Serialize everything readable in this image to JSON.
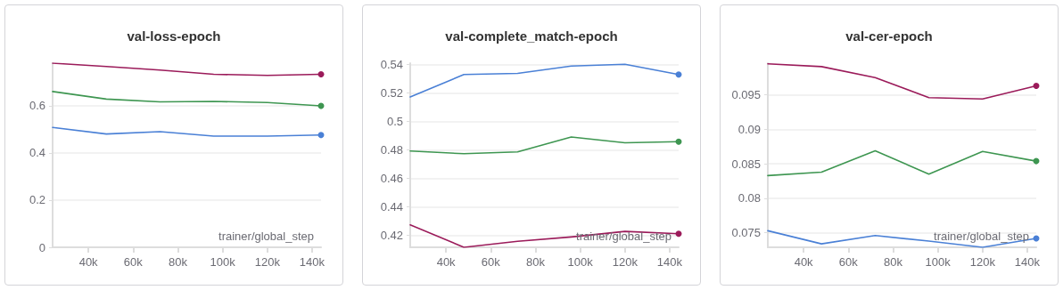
{
  "chart_data": [
    {
      "type": "line",
      "title": "val-loss-epoch",
      "xlabel": "trainer/global_step",
      "x": [
        24000,
        48000,
        72000,
        96000,
        120000,
        144000
      ],
      "xlim": [
        24000,
        144000
      ],
      "xticks": [
        {
          "value": 40000,
          "label": "40k"
        },
        {
          "value": 60000,
          "label": "60k"
        },
        {
          "value": 80000,
          "label": "80k"
        },
        {
          "value": 100000,
          "label": "100k"
        },
        {
          "value": 120000,
          "label": "120k"
        },
        {
          "value": 140000,
          "label": "140k"
        }
      ],
      "ylim": [
        0,
        0.78
      ],
      "yticks": [
        0,
        0.2,
        0.4,
        0.6
      ],
      "grid": "y",
      "marker": "none",
      "line_style": "solid",
      "series": [
        {
          "color": "#9b1b5a",
          "values": [
            0.78,
            0.766,
            0.751,
            0.733,
            0.728,
            0.733
          ]
        },
        {
          "color": "#3e9651",
          "values": [
            0.66,
            0.628,
            0.616,
            0.618,
            0.613,
            0.599
          ]
        },
        {
          "color": "#4a80d6",
          "values": [
            0.508,
            0.48,
            0.49,
            0.471,
            0.471,
            0.476
          ]
        }
      ]
    },
    {
      "type": "line",
      "title": "val-complete_match-epoch",
      "xlabel": "trainer/global_step",
      "x": [
        24000,
        48000,
        72000,
        96000,
        120000,
        144000
      ],
      "xlim": [
        24000,
        144000
      ],
      "xticks": [
        {
          "value": 40000,
          "label": "40k"
        },
        {
          "value": 60000,
          "label": "60k"
        },
        {
          "value": 80000,
          "label": "80k"
        },
        {
          "value": 100000,
          "label": "100k"
        },
        {
          "value": 120000,
          "label": "120k"
        },
        {
          "value": 140000,
          "label": "140k"
        }
      ],
      "ylim": [
        0.4115,
        0.541
      ],
      "yticks": [
        0.42,
        0.44,
        0.46,
        0.48,
        0.5,
        0.52,
        0.54
      ],
      "grid": "y",
      "marker": "none",
      "line_style": "solid",
      "series": [
        {
          "color": "#4a80d6",
          "values": [
            0.5172,
            0.533,
            0.5338,
            0.539,
            0.5402,
            0.533
          ]
        },
        {
          "color": "#3e9651",
          "values": [
            0.4792,
            0.4773,
            0.4786,
            0.4891,
            0.485,
            0.4858
          ]
        },
        {
          "color": "#9b1b5a",
          "values": [
            0.4273,
            0.4115,
            0.4157,
            0.4188,
            0.4227,
            0.421
          ]
        }
      ]
    },
    {
      "type": "line",
      "title": "val-cer-epoch",
      "xlabel": "trainer/global_step",
      "x": [
        24000,
        48000,
        72000,
        96000,
        120000,
        144000
      ],
      "xlim": [
        24000,
        144000
      ],
      "xticks": [
        {
          "value": 40000,
          "label": "40k"
        },
        {
          "value": 60000,
          "label": "60k"
        },
        {
          "value": 80000,
          "label": "80k"
        },
        {
          "value": 100000,
          "label": "100k"
        },
        {
          "value": 120000,
          "label": "120k"
        },
        {
          "value": 140000,
          "label": "140k"
        }
      ],
      "ylim": [
        0.0729,
        0.0996
      ],
      "yticks": [
        0.075,
        0.08,
        0.085,
        0.09,
        0.095
      ],
      "grid": "y",
      "marker": "none",
      "line_style": "solid",
      "series": [
        {
          "color": "#9b1b5a",
          "values": [
            0.0995,
            0.0991,
            0.0975,
            0.0946,
            0.0944,
            0.0963
          ]
        },
        {
          "color": "#3e9651",
          "values": [
            0.0833,
            0.0838,
            0.0869,
            0.0835,
            0.0868,
            0.0854
          ]
        },
        {
          "color": "#4a80d6",
          "values": [
            0.0753,
            0.0734,
            0.0746,
            0.0738,
            0.0729,
            0.0742
          ]
        }
      ]
    }
  ]
}
